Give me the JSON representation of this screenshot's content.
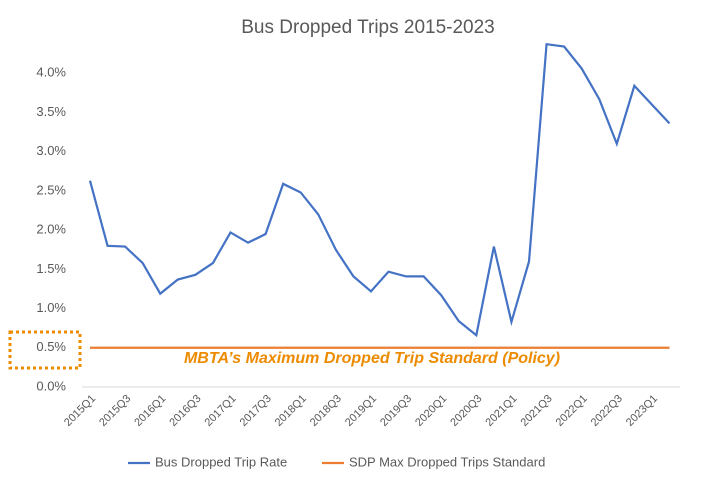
{
  "chart_data": {
    "type": "line",
    "title": "Bus Dropped Trips 2015-2023",
    "categories": [
      "2015Q1",
      null,
      "2015Q3",
      null,
      "2016Q1",
      null,
      "2016Q3",
      null,
      "2017Q1",
      null,
      "2017Q3",
      null,
      "2018Q1",
      null,
      "2018Q3",
      null,
      "2019Q1",
      null,
      "2019Q3",
      null,
      "2020Q1",
      null,
      "2020Q3",
      null,
      "2021Q1",
      null,
      "2021Q3",
      null,
      "2022Q1",
      null,
      "2022Q3",
      null,
      "2023Q1",
      null
    ],
    "series": [
      {
        "name": "Bus Dropped Trip Rate",
        "color": "#4472c4",
        "values": [
          2.63,
          1.8,
          1.79,
          1.58,
          1.19,
          1.37,
          1.43,
          1.58,
          1.97,
          1.84,
          1.95,
          2.59,
          2.48,
          2.2,
          1.75,
          1.41,
          1.22,
          1.47,
          1.41,
          1.41,
          1.17,
          0.84,
          0.66,
          1.79,
          0.83,
          1.6,
          4.37,
          4.34,
          4.06,
          3.67,
          3.1,
          3.84,
          3.6,
          3.36
        ]
      },
      {
        "name": "SDP Max Dropped Trips Standard",
        "color": "#ed7d31",
        "values": [
          0.5,
          0.5,
          0.5,
          0.5,
          0.5,
          0.5,
          0.5,
          0.5,
          0.5,
          0.5,
          0.5,
          0.5,
          0.5,
          0.5,
          0.5,
          0.5,
          0.5,
          0.5,
          0.5,
          0.5,
          0.5,
          0.5,
          0.5,
          0.5,
          0.5,
          0.5,
          0.5,
          0.5,
          0.5,
          0.5,
          0.5,
          0.5,
          0.5,
          0.5
        ]
      }
    ],
    "ylim": [
      0,
      4.5
    ],
    "yticks": [
      {
        "value": 0,
        "label": "0.0%"
      },
      {
        "value": 0.5,
        "label": "0.5%"
      },
      {
        "value": 1,
        "label": "1.0%"
      },
      {
        "value": 1.5,
        "label": "1.5%"
      },
      {
        "value": 2,
        "label": "2.0%"
      },
      {
        "value": 2.5,
        "label": "2.5%"
      },
      {
        "value": 3,
        "label": "3.0%"
      },
      {
        "value": 3.5,
        "label": "3.5%"
      },
      {
        "value": 4,
        "label": "4.0%"
      }
    ],
    "annotation": "MBTA’s Maximum Dropped Trip Standard (Policy)",
    "grid": false
  }
}
